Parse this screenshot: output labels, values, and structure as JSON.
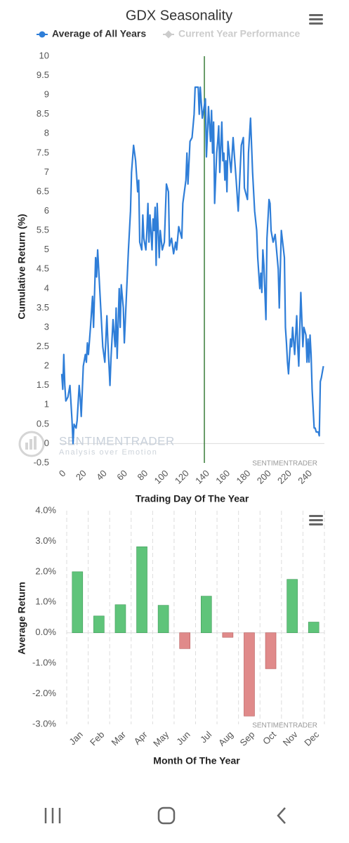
{
  "chart_data": [
    {
      "type": "line",
      "title": "GDX Seasonality",
      "x_label": "Trading Day Of The Year",
      "y_label": "Cumulative Return (%)",
      "xlim": [
        -2,
        256
      ],
      "ylim": [
        -0.5,
        10
      ],
      "xticks": [
        0,
        20,
        40,
        60,
        80,
        100,
        120,
        140,
        160,
        180,
        200,
        220,
        240
      ],
      "yticks": [
        -0.5,
        0,
        0.5,
        1,
        1.5,
        2,
        2.5,
        3,
        3.5,
        4,
        4.5,
        5,
        5.5,
        6,
        6.5,
        7,
        7.5,
        8,
        8.5,
        9,
        9.5,
        10
      ],
      "vline": 139,
      "vline_color": "#3a7d3a",
      "annotations": [
        "SENTIMENTRADER",
        "Analysis over Emotion",
        "SENTIMENTRADER"
      ],
      "series": [
        {
          "name": "Average of All Years",
          "color": "#2f7ed8",
          "x": [
            0,
            1,
            2,
            3,
            4,
            6,
            8,
            10,
            11,
            12,
            14,
            15,
            17,
            18,
            19,
            21,
            23,
            24,
            25,
            26,
            28,
            30,
            31,
            33,
            34,
            35,
            37,
            38,
            40,
            42,
            44,
            45,
            47,
            48,
            50,
            52,
            53,
            54,
            56,
            57,
            58,
            60,
            61,
            63,
            65,
            67,
            68,
            70,
            72,
            74,
            75,
            76,
            78,
            79,
            80,
            82,
            83,
            84,
            85,
            86,
            88,
            89,
            90,
            91,
            92,
            93,
            95,
            96,
            98,
            100,
            102,
            104,
            105,
            107,
            109,
            111,
            112,
            114,
            117,
            118,
            121,
            122,
            123,
            125,
            127,
            129,
            130,
            133,
            134,
            135,
            136,
            137,
            140,
            141,
            142,
            143,
            145,
            146,
            147,
            148,
            149,
            151,
            152,
            153,
            154,
            156,
            157,
            158,
            159,
            160,
            161,
            162,
            165,
            167,
            170,
            172,
            175,
            177,
            178,
            181,
            182,
            184,
            186,
            188,
            190,
            191,
            193,
            194,
            195,
            196,
            197,
            199,
            200,
            202,
            203,
            204,
            206,
            207,
            208,
            211,
            212,
            214,
            217,
            218,
            219,
            220,
            221,
            223,
            224,
            225,
            227,
            229,
            230,
            231,
            233,
            235,
            236,
            238,
            239,
            240,
            241,
            242,
            243,
            244,
            246,
            247,
            248,
            250,
            251,
            252,
            253,
            255
          ],
          "values": [
            1.8,
            1.4,
            2.3,
            1.5,
            1.1,
            1.2,
            1.5,
            0.6,
            0.0,
            0.5,
            0.4,
            0.6,
            1.5,
            1.2,
            0.7,
            2.0,
            2.3,
            2.1,
            2.6,
            2.3,
            3.0,
            3.8,
            3.0,
            4.8,
            4.3,
            5.0,
            4.0,
            3.5,
            2.5,
            2.1,
            3.3,
            2.6,
            1.5,
            2.2,
            3.2,
            2.5,
            3.5,
            2.2,
            4.0,
            3.0,
            4.1,
            3.5,
            2.6,
            3.8,
            5.0,
            6.0,
            7.0,
            7.7,
            7.3,
            6.5,
            6.8,
            5.2,
            5.0,
            5.9,
            5.3,
            5.0,
            5.5,
            6.2,
            5.2,
            5.9,
            5.0,
            5.8,
            5.5,
            6.1,
            4.6,
            6.2,
            4.8,
            5.5,
            5.0,
            5.2,
            6.7,
            6.5,
            5.1,
            5.3,
            4.9,
            5.2,
            5.0,
            5.6,
            5.3,
            6.2,
            6.8,
            7.5,
            6.7,
            7.8,
            7.9,
            8.5,
            9.2,
            9.2,
            8.5,
            9.2,
            8.8,
            8.4,
            8.9,
            7.4,
            8.0,
            8.7,
            7.8,
            8.6,
            7.5,
            8.3,
            6.2,
            7.5,
            7.8,
            8.2,
            7.0,
            8.3,
            7.3,
            7.5,
            6.8,
            7.3,
            6.5,
            7.8,
            7.0,
            7.9,
            6.8,
            6.0,
            7.7,
            7.9,
            6.6,
            6.3,
            7.5,
            8.4,
            7.0,
            6.0,
            5.5,
            4.8,
            4.0,
            4.4,
            3.9,
            5.0,
            4.6,
            3.2,
            5.3,
            6.3,
            6.2,
            5.5,
            5.2,
            5.3,
            5.4,
            4.5,
            3.5,
            5.5,
            4.8,
            3.0,
            2.6,
            2.1,
            1.8,
            2.7,
            2.5,
            3.0,
            2.3,
            3.3,
            2.5,
            2.0,
            3.9,
            2.5,
            3.0,
            2.8,
            2.1,
            2.7,
            2.1,
            2.8,
            2.3,
            1.4,
            0.4,
            0.4,
            0.3,
            0.3,
            0.2,
            1.6,
            1.7,
            2.0
          ]
        },
        {
          "name": "Current Year Performance",
          "color": "#cccccc",
          "x": [],
          "values": []
        }
      ]
    },
    {
      "type": "bar",
      "x_label": "Month Of The Year",
      "y_label": "Average Return",
      "categories": [
        "Jan",
        "Feb",
        "Mar",
        "Apr",
        "May",
        "Jun",
        "Jul",
        "Aug",
        "Sep",
        "Oct",
        "Nov",
        "Dec"
      ],
      "values": [
        2.0,
        0.55,
        0.92,
        2.82,
        0.9,
        -0.52,
        1.2,
        -0.15,
        -2.73,
        -1.18,
        1.75,
        0.35
      ],
      "positive_color": "#5fc47a",
      "negative_color": "#e08a8a",
      "ylim": [
        -3,
        4
      ],
      "yticks": [
        {
          "value": 4,
          "label": "4.0%"
        },
        {
          "value": 3,
          "label": "3.0%"
        },
        {
          "value": 2,
          "label": "2.0%"
        },
        {
          "value": 1,
          "label": "1.0%"
        },
        {
          "value": 0,
          "label": "0.0%"
        },
        {
          "value": -1,
          "label": "-1.0%"
        },
        {
          "value": -2,
          "label": "-2.0%"
        },
        {
          "value": -3,
          "label": "-3.0%"
        }
      ],
      "annotations": [
        "SENTIMENTRADER"
      ]
    }
  ]
}
